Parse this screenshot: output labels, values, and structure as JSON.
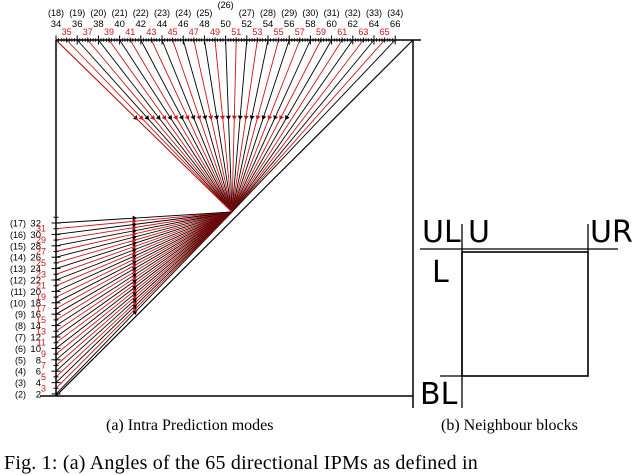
{
  "colors": {
    "red": "#d11515",
    "black": "#000000"
  },
  "top_even_modes": [
    "34",
    "36",
    "38",
    "40",
    "42",
    "44",
    "46",
    "48",
    "50",
    "52",
    "54",
    "56",
    "58",
    "60",
    "62",
    "64",
    "66"
  ],
  "top_odd_modes": [
    "35",
    "37",
    "39",
    "41",
    "43",
    "45",
    "47",
    "49",
    "51",
    "53",
    "55",
    "57",
    "59",
    "61",
    "63",
    "65"
  ],
  "top_angle_labels": [
    "(18)",
    "(19)",
    "(20)",
    "(21)",
    "(22)",
    "(23)",
    "(24)",
    "(25)",
    "(26)",
    "(27)",
    "(28)",
    "(29)",
    "(30)",
    "(31)",
    "(32)",
    "(33)",
    "(34)"
  ],
  "left_even_modes": [
    "32",
    "30",
    "28",
    "26",
    "24",
    "22",
    "20",
    "18",
    "16",
    "14",
    "12",
    "10",
    "8",
    "6",
    "4",
    "2"
  ],
  "left_odd_modes": [
    "31",
    "29",
    "27",
    "25",
    "23",
    "21",
    "19",
    "17",
    "15",
    "13",
    "11",
    "9",
    "7",
    "5",
    "3"
  ],
  "left_angle_labels": [
    "(17)",
    "(16)",
    "(15)",
    "(14)",
    "(13)",
    "(12)",
    "(11)",
    "(10)",
    "(9)",
    "(8)",
    "(7)",
    "(6)",
    "(5)",
    "(4)",
    "(3)",
    "(2)"
  ],
  "neighbour_blocks": {
    "ul": "UL",
    "u": "U",
    "ur": "UR",
    "l": "L",
    "bl": "BL"
  },
  "captions": {
    "a": "(a) Intra Prediction modes",
    "b": "(b) Neighbour blocks",
    "figure": "Fig. 1: (a) Angles of the 65 directional IPMs as defined in"
  }
}
